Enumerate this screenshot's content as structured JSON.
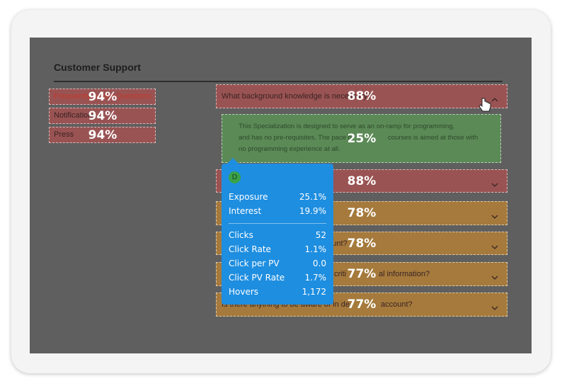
{
  "header": {
    "title": "Customer Support"
  },
  "nav": [
    {
      "label": "Frequently Asked Questions",
      "heat": "94%"
    },
    {
      "label": "Notifications",
      "heat": "94%"
    },
    {
      "label": "Press",
      "heat": "94%"
    }
  ],
  "accordion": [
    {
      "texts": [
        "What background knowledge is necessary?"
      ],
      "heat": "88%"
    },
    {
      "texts": [
        "This Specialization is designed to serve as an on-ramp for programming,",
        "and has no pre-requisites. The pace of",
        "courses is aimed at those with",
        "no programming experience at all."
      ],
      "heat": "25%"
    },
    {
      "texts": [],
      "heat": "88%"
    },
    {
      "texts": [],
      "heat": "78%"
    },
    {
      "texts": [
        "account?"
      ],
      "heat": "78%"
    },
    {
      "texts": [
        "criti",
        "al information?"
      ],
      "heat": "77%"
    },
    {
      "texts": [
        "Is there anything to be aware of in de",
        "account?"
      ],
      "heat": "77%"
    }
  ],
  "tooltip": {
    "badge": "D",
    "metrics": [
      {
        "label": "Exposure",
        "value": "25.1%"
      },
      {
        "label": "Interest",
        "value": "19.9%"
      }
    ],
    "interactions": [
      {
        "label": "Clicks",
        "value": "52"
      },
      {
        "label": "Click Rate",
        "value": "1.1%"
      },
      {
        "label": "Click per PV",
        "value": "0.0"
      },
      {
        "label": "Click PV Rate",
        "value": "1.7%"
      },
      {
        "label": "Hovers",
        "value": "1,172"
      }
    ]
  }
}
